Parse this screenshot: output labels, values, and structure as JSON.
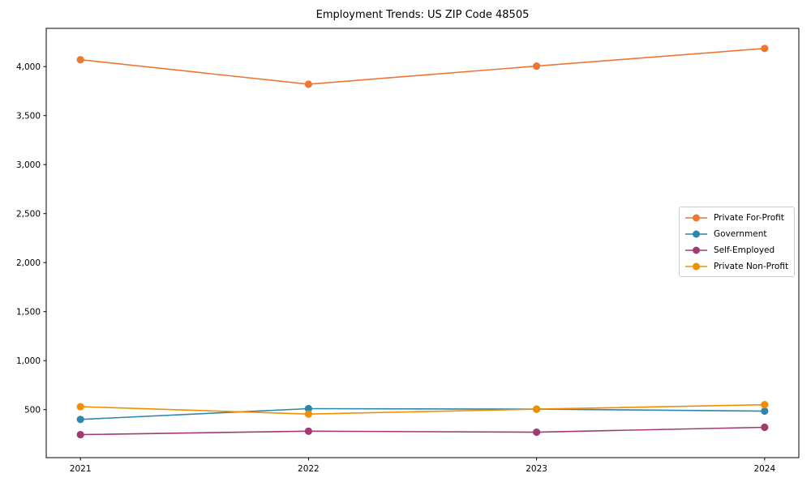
{
  "chart_data": {
    "type": "line",
    "title": "Employment Trends: US ZIP Code 48505",
    "xlabel": "",
    "ylabel": "",
    "x": [
      2021,
      2022,
      2023,
      2024
    ],
    "series": [
      {
        "name": "Private For-Profit",
        "color": "#ee7633",
        "values": [
          4070,
          3820,
          4005,
          4185
        ]
      },
      {
        "name": "Government",
        "color": "#2e86ab",
        "values": [
          400,
          510,
          505,
          485
        ]
      },
      {
        "name": "Self-Employed",
        "color": "#a23b72",
        "values": [
          245,
          280,
          270,
          320
        ]
      },
      {
        "name": "Private Non-Profit",
        "color": "#f18f01",
        "values": [
          530,
          455,
          505,
          550
        ]
      }
    ],
    "xticks": [
      2021,
      2022,
      2023,
      2024
    ],
    "yticks": [
      500,
      1000,
      1500,
      2000,
      2500,
      3000,
      3500,
      4000
    ],
    "xlim": [
      2020.85,
      2024.15
    ],
    "ylim": [
      10,
      4390
    ],
    "grid": false,
    "legend_position": "center right",
    "marker": "circle",
    "axis_color": "#000000",
    "legend_border_color": "#cccccc"
  }
}
